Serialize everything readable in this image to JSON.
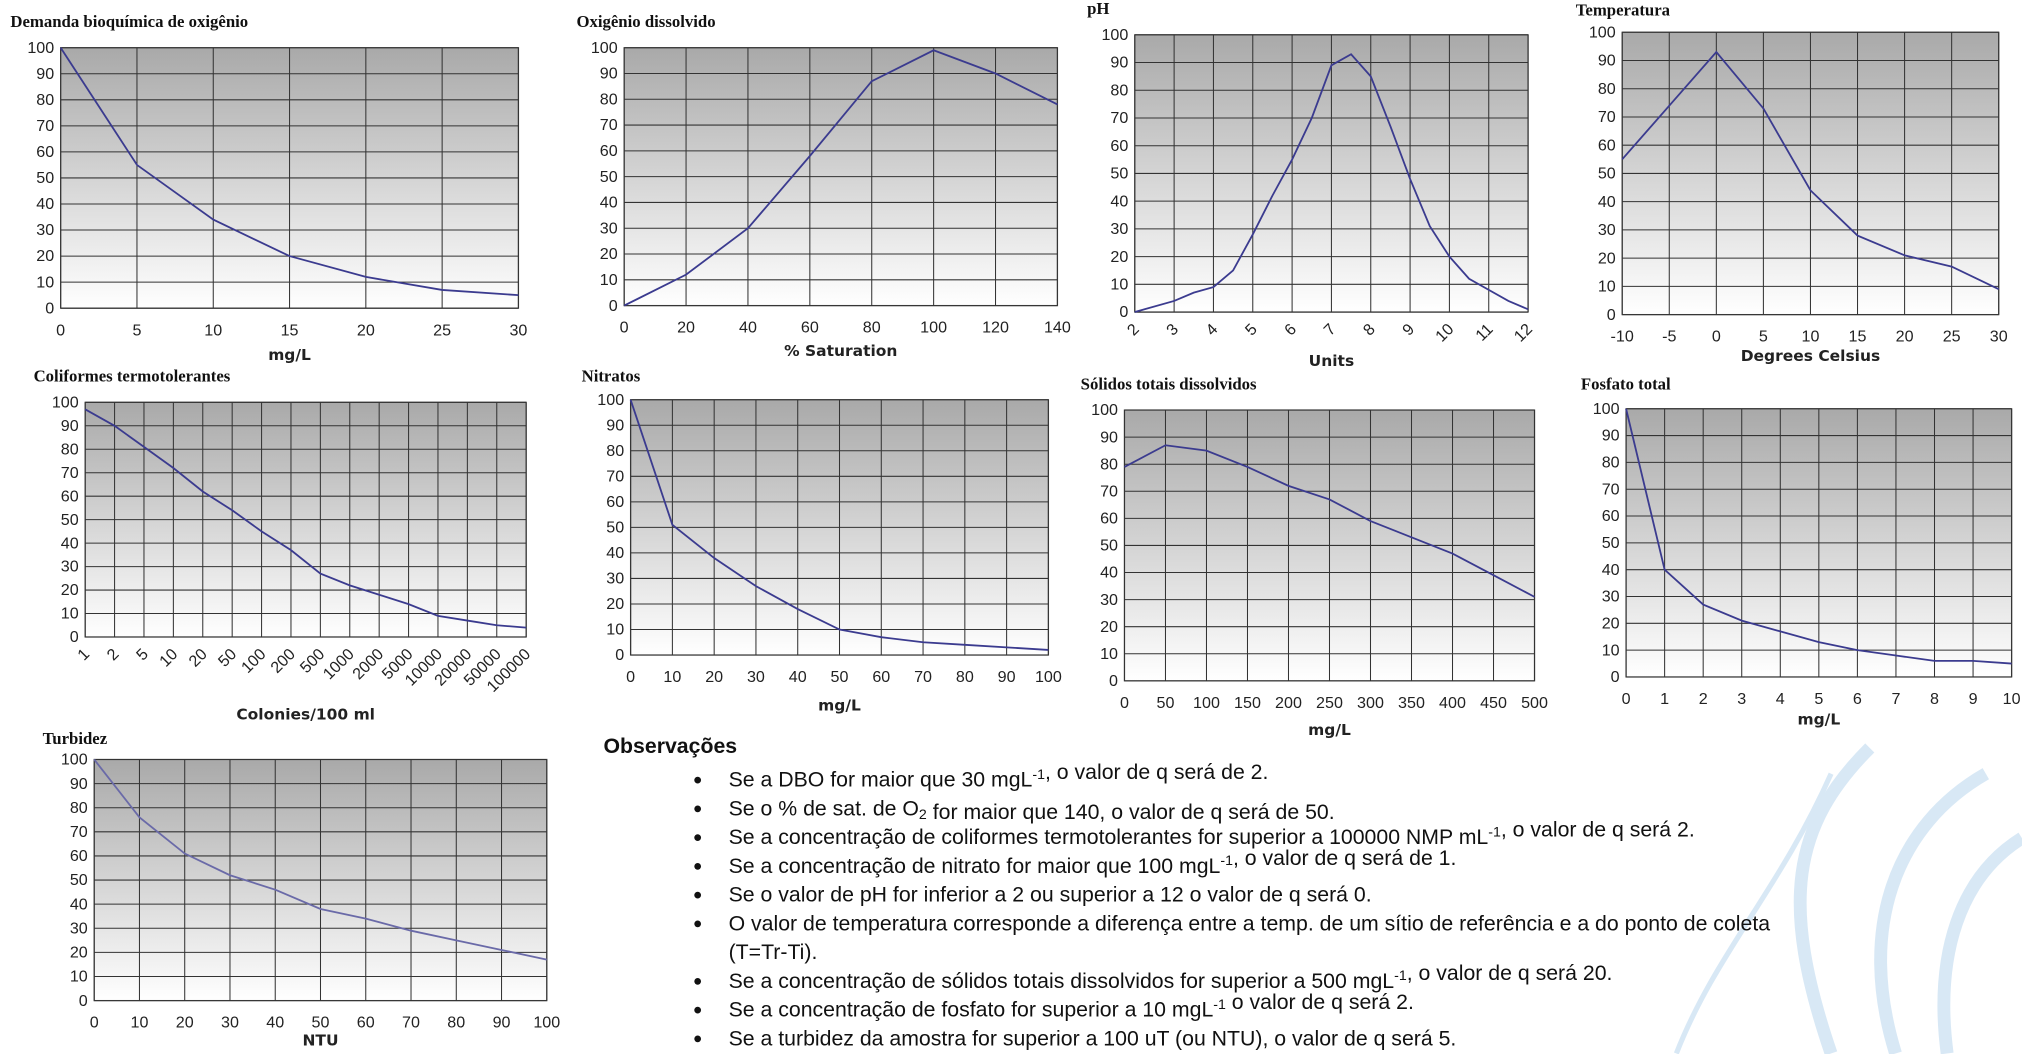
{
  "chart_data": [
    {
      "type": "line",
      "title": "Demanda bioquímica de oxigênio",
      "xlabel": "mg/L",
      "color": "#3b3b8f",
      "grid": true,
      "x": [
        0,
        5,
        10,
        15,
        20,
        25,
        30
      ],
      "values": [
        100,
        55,
        34,
        20,
        12,
        7,
        5
      ],
      "xlim": [
        0,
        30
      ],
      "xticks": [
        0,
        5,
        10,
        15,
        20,
        25,
        30
      ],
      "ylim": [
        0,
        100
      ],
      "yticks": [
        0,
        10,
        20,
        30,
        40,
        50,
        60,
        70,
        80,
        90,
        100
      ]
    },
    {
      "type": "line",
      "title": "Oxigênio dissolvido",
      "xlabel": "% Saturation",
      "color": "#3b3b8f",
      "grid": true,
      "x": [
        0,
        20,
        40,
        60,
        80,
        100,
        120,
        140
      ],
      "values": [
        0,
        12,
        30,
        58,
        87,
        99,
        90,
        78
      ],
      "xlim": [
        0,
        140
      ],
      "xticks": [
        0,
        20,
        40,
        60,
        80,
        100,
        120,
        140
      ],
      "ylim": [
        0,
        100
      ],
      "yticks": [
        0,
        10,
        20,
        30,
        40,
        50,
        60,
        70,
        80,
        90,
        100
      ]
    },
    {
      "type": "line",
      "title": "pH",
      "xlabel": "Units",
      "color": "#3b3b8f",
      "grid": true,
      "x": [
        2,
        3,
        3.5,
        4,
        4.5,
        5,
        5.5,
        6,
        6.5,
        7,
        7.5,
        8,
        8.5,
        9,
        9.5,
        10,
        10.5,
        11,
        11.5,
        12
      ],
      "values": [
        0,
        4,
        7,
        9,
        15,
        28,
        42,
        55,
        70,
        89,
        93,
        85,
        67,
        48,
        31,
        20,
        12,
        8,
        4,
        1
      ],
      "xlim": [
        2,
        12
      ],
      "xticks": [
        2,
        3,
        4,
        5,
        6,
        7,
        8,
        9,
        10,
        11,
        12
      ],
      "ylim": [
        0,
        100
      ],
      "yticks": [
        0,
        10,
        20,
        30,
        40,
        50,
        60,
        70,
        80,
        90,
        100
      ]
    },
    {
      "type": "line",
      "title": "Temperatura",
      "xlabel": "Degrees Celsius",
      "color": "#3b3b8f",
      "grid": true,
      "x": [
        -10,
        -5,
        0,
        5,
        10,
        15,
        20,
        25,
        30
      ],
      "values": [
        55,
        74,
        93,
        73,
        44,
        28,
        21,
        17,
        9
      ],
      "xlim": [
        -10,
        30
      ],
      "xticks": [
        -10,
        -5,
        0,
        5,
        10,
        15,
        20,
        25,
        30
      ],
      "ylim": [
        0,
        100
      ],
      "yticks": [
        0,
        10,
        20,
        30,
        40,
        50,
        60,
        70,
        80,
        90,
        100
      ]
    },
    {
      "type": "line",
      "title": "Coliformes termotolerantes",
      "xlabel": "Colonies/100 ml",
      "color": "#3b3b8f",
      "grid": true,
      "categories": [
        "1",
        "2",
        "5",
        "10",
        "20",
        "50",
        "100",
        "200",
        "500",
        "1000",
        "2000",
        "5000",
        "10000",
        "20000",
        "50000",
        "100000"
      ],
      "values": [
        97,
        90,
        81,
        72,
        62,
        54,
        45,
        37,
        27,
        22,
        18,
        14,
        9,
        7,
        5,
        4
      ],
      "ylim": [
        0,
        100
      ],
      "yticks": [
        0,
        10,
        20,
        30,
        40,
        50,
        60,
        70,
        80,
        90,
        100
      ]
    },
    {
      "type": "line",
      "title": "Nitratos",
      "xlabel": "mg/L",
      "color": "#3b3b8f",
      "grid": true,
      "x": [
        0,
        10,
        20,
        30,
        40,
        50,
        60,
        70,
        80,
        90,
        100
      ],
      "values": [
        100,
        51,
        38,
        27,
        18,
        10,
        7,
        5,
        4,
        3,
        2
      ],
      "xlim": [
        0,
        100
      ],
      "xticks": [
        0,
        10,
        20,
        30,
        40,
        50,
        60,
        70,
        80,
        90,
        100
      ],
      "ylim": [
        0,
        100
      ],
      "yticks": [
        0,
        10,
        20,
        30,
        40,
        50,
        60,
        70,
        80,
        90,
        100
      ]
    },
    {
      "type": "line",
      "title": "Sólidos totais dissolvidos",
      "xlabel": "mg/L",
      "color": "#3b3b8f",
      "grid": true,
      "x": [
        0,
        50,
        100,
        150,
        200,
        250,
        300,
        350,
        400,
        450,
        500
      ],
      "values": [
        79,
        87,
        85,
        79,
        72,
        67,
        59,
        53,
        47,
        39,
        31
      ],
      "xlim": [
        0,
        500
      ],
      "xticks": [
        0,
        50,
        100,
        150,
        200,
        250,
        300,
        350,
        400,
        450,
        500
      ],
      "ylim": [
        0,
        100
      ],
      "yticks": [
        0,
        10,
        20,
        30,
        40,
        50,
        60,
        70,
        80,
        90,
        100
      ]
    },
    {
      "type": "line",
      "title": "Fosfato total",
      "xlabel": "mg/L",
      "color": "#3b3b8f",
      "grid": true,
      "x": [
        0,
        1,
        2,
        3,
        4,
        5,
        6,
        7,
        8,
        9,
        10
      ],
      "values": [
        100,
        40,
        27,
        21,
        17,
        13,
        10,
        8,
        6,
        6,
        5
      ],
      "xlim": [
        0,
        10
      ],
      "xticks": [
        0,
        1,
        2,
        3,
        4,
        5,
        6,
        7,
        8,
        9,
        10
      ],
      "ylim": [
        0,
        100
      ],
      "yticks": [
        0,
        10,
        20,
        30,
        40,
        50,
        60,
        70,
        80,
        90,
        100
      ]
    },
    {
      "type": "line",
      "title": "Turbidez",
      "xlabel": "NTU",
      "color": "#6a6aa8",
      "grid": true,
      "x": [
        0,
        10,
        20,
        30,
        40,
        50,
        60,
        70,
        80,
        90,
        100
      ],
      "values": [
        100,
        76,
        61,
        52,
        46,
        38,
        34,
        29,
        25,
        21,
        17
      ],
      "xlim": [
        0,
        100
      ],
      "xticks": [
        0,
        10,
        20,
        30,
        40,
        50,
        60,
        70,
        80,
        90,
        100
      ],
      "ylim": [
        0,
        100
      ],
      "yticks": [
        0,
        10,
        20,
        30,
        40,
        50,
        60,
        70,
        80,
        90,
        100
      ]
    }
  ],
  "notes": {
    "title": "Observações",
    "items": [
      [
        [
          "Se a DBO for maior que 30 mgL",
          {
            "sup": "-1"
          },
          ", o valor de q será de 2."
        ]
      ],
      [
        [
          "Se o % de sat. de O",
          {
            "sub": "2"
          },
          " for maior que 140, o valor de q será de 50."
        ]
      ],
      [
        [
          "Se a concentração de coliformes termotolerantes for superior a 100000 NMP mL",
          {
            "sup": "-1"
          },
          ", o valor de q será 2."
        ]
      ],
      [
        [
          "Se a concentração de nitrato for maior que 100 mgL",
          {
            "sup": "-1"
          },
          ", o valor de q será de 1."
        ]
      ],
      [
        [
          "Se o valor de pH for inferior a 2 ou superior a 12 o valor de q será 0."
        ]
      ],
      [
        [
          "O valor de temperatura corresponde a diferença entre a temp. de um sítio de referência e a do ponto de coleta"
        ],
        [
          "(T=Tr-Ti)."
        ]
      ],
      [
        [
          "Se a concentração de sólidos totais dissolvidos for superior a 500 mgL",
          {
            "sup": "-1"
          },
          ", o valor de q será 20."
        ]
      ],
      [
        [
          "Se a concentração de fosfato for superior a 10 mgL",
          {
            "sup": "-1"
          },
          " o valor de q será 2."
        ]
      ],
      [
        [
          "Se a turbidez da amostra for superior a 100 uT (ou NTU), o valor de q será 5."
        ]
      ]
    ]
  }
}
